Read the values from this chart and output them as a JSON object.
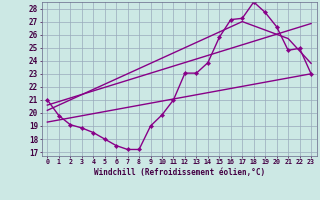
{
  "xlabel": "Windchill (Refroidissement éolien,°C)",
  "bg_color": "#cce8e4",
  "grid_color": "#99aabb",
  "line_color": "#880088",
  "xlim": [
    -0.5,
    23.5
  ],
  "ylim": [
    16.7,
    28.5
  ],
  "yticks": [
    17,
    18,
    19,
    20,
    21,
    22,
    23,
    24,
    25,
    26,
    27,
    28
  ],
  "xticks": [
    0,
    1,
    2,
    3,
    4,
    5,
    6,
    7,
    8,
    9,
    10,
    11,
    12,
    13,
    14,
    15,
    16,
    17,
    18,
    19,
    20,
    21,
    22,
    23
  ],
  "line1_x": [
    0,
    1,
    2,
    3,
    4,
    5,
    6,
    7,
    8,
    9,
    10,
    11,
    12,
    13,
    14,
    15,
    16,
    17,
    18,
    19,
    20,
    21,
    22,
    23
  ],
  "line1_y": [
    21.0,
    19.8,
    19.1,
    18.85,
    18.5,
    18.0,
    17.5,
    17.2,
    17.2,
    19.0,
    19.85,
    21.0,
    23.05,
    23.05,
    23.85,
    25.8,
    27.15,
    27.25,
    28.5,
    27.7,
    26.6,
    24.8,
    24.95,
    23.0
  ],
  "line2_x": [
    0,
    23
  ],
  "line2_y": [
    19.3,
    23.0
  ],
  "line3_x": [
    0,
    23
  ],
  "line3_y": [
    20.6,
    26.85
  ],
  "line4_x": [
    0,
    17,
    21,
    23
  ],
  "line4_y": [
    20.2,
    27.0,
    25.7,
    23.8
  ]
}
